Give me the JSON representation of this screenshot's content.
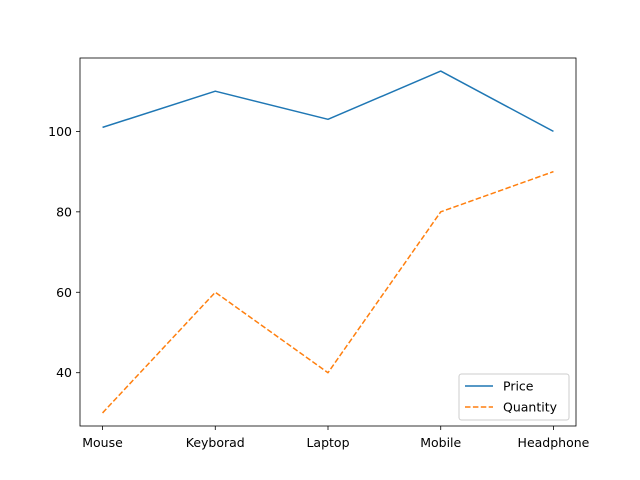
{
  "chart_data": {
    "type": "line",
    "title": "",
    "xlabel": "",
    "ylabel": "",
    "categories": [
      "Mouse",
      "Keyborad",
      "Laptop",
      "Mobile",
      "Headphone"
    ],
    "series": [
      {
        "name": "Price",
        "values": [
          101,
          110,
          103,
          115,
          100
        ],
        "color": "#1f77b4",
        "style": "solid"
      },
      {
        "name": "Quantity",
        "values": [
          30,
          60,
          40,
          80,
          90
        ],
        "color": "#ff7f0e",
        "style": "dashed"
      }
    ],
    "ylim": [
      26.75,
      118.25
    ],
    "yticks": [
      40,
      60,
      80,
      100
    ],
    "grid": false,
    "legend_position": "lower-right"
  }
}
